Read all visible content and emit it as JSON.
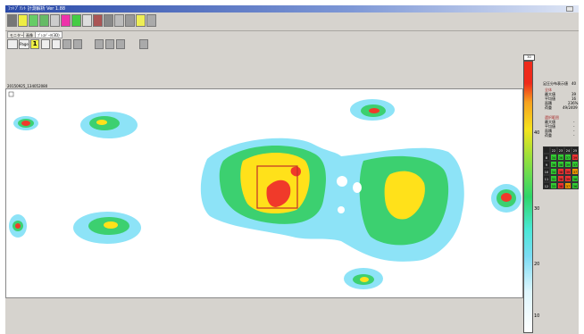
{
  "window": {
    "title": "ﾌｯﾄﾌﾟﾘﾝﾄ 計測解析 Ver 1.88"
  },
  "tabs": [
    "モニター",
    "画像",
    "ﾌﾟﾚｽﾃﾞｰﾀ(3D)"
  ],
  "toolbar2": {
    "page_label": "Page",
    "page_number": "1"
  },
  "view": {
    "filename": "20150925_134052080"
  },
  "scale": {
    "top_label": "30",
    "labels": [
      "40",
      "30",
      "20",
      "10"
    ]
  },
  "right_panel": {
    "title": "足圧分布表示値",
    "title_value": "40",
    "section1": "全体",
    "rows1": [
      {
        "label": "最大値",
        "value": "39"
      },
      {
        "label": "平均値",
        "value": "16"
      },
      {
        "label": "面積",
        "value": "236%"
      },
      {
        "label": "荷重",
        "value": "49/2409"
      }
    ],
    "section2": "選択範囲",
    "rows2": [
      {
        "label": "最大値",
        "value": "-"
      },
      {
        "label": "平均値",
        "value": "-"
      },
      {
        "label": "面積",
        "value": "-"
      },
      {
        "label": "荷重",
        "value": "-"
      }
    ]
  },
  "grid": {
    "cols": [
      "22",
      "23",
      "24",
      "25",
      "26"
    ],
    "rows": [
      {
        "label": "8",
        "cells": [
          [
            "34",
            "#3c3"
          ],
          [
            "36",
            "#3c3"
          ],
          [
            "37",
            "#3c3"
          ],
          [
            "39",
            "#e33"
          ],
          [
            "33",
            "#3c3"
          ]
        ]
      },
      {
        "label": "9",
        "cells": [
          [
            "36",
            "#3c3"
          ],
          [
            "38",
            "#3c3"
          ],
          [
            "39",
            "#3c3"
          ],
          [
            "37",
            "#3c3"
          ],
          [
            "36",
            "#3c3"
          ]
        ]
      },
      {
        "label": "10",
        "cells": [
          [
            "34",
            "#3c3"
          ],
          [
            "38",
            "#e33"
          ],
          [
            "39",
            "#e33"
          ],
          [
            "37",
            "#e90"
          ],
          [
            "34",
            "#3c3"
          ]
        ]
      },
      {
        "label": "11",
        "cells": [
          [
            "32",
            "#3c3"
          ],
          [
            "38",
            "#e33"
          ],
          [
            "39",
            "#e33"
          ],
          [
            "36",
            "#3c3"
          ],
          [
            "33",
            "#3c3"
          ]
        ]
      },
      {
        "label": "12",
        "cells": [
          [
            "33",
            "#3c3"
          ],
          [
            "38",
            "#e33"
          ],
          [
            "37",
            "#e90"
          ],
          [
            "36",
            "#3c3"
          ],
          [
            "30",
            "#3c3"
          ]
        ]
      }
    ]
  }
}
